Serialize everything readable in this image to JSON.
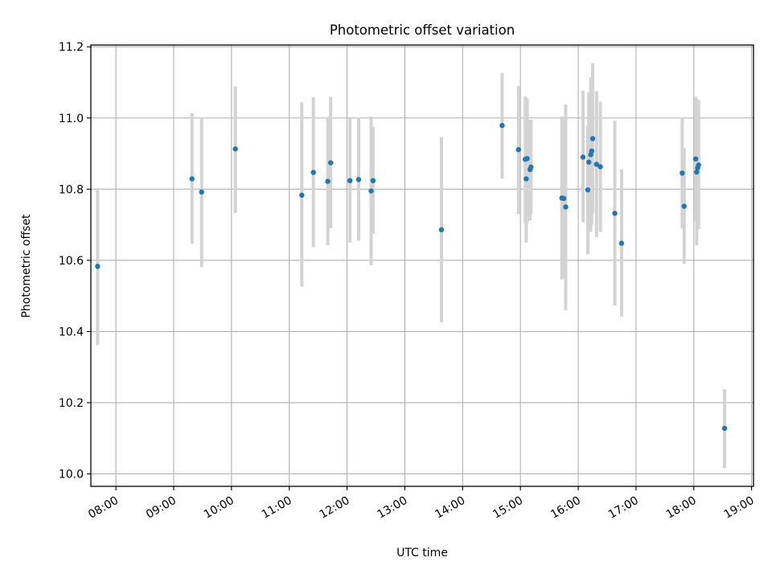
{
  "chart_data": {
    "type": "scatter",
    "title": "Photometric offset variation",
    "xlabel": "UTC time",
    "ylabel": "Photometric offset",
    "xlim": [
      "07:34",
      "19:02"
    ],
    "ylim": [
      9.965,
      11.205
    ],
    "x_ticks": [
      "08:00",
      "09:00",
      "10:00",
      "11:00",
      "12:00",
      "13:00",
      "14:00",
      "15:00",
      "16:00",
      "17:00",
      "18:00",
      "19:00"
    ],
    "y_ticks": [
      "10.0",
      "10.2",
      "10.4",
      "10.6",
      "10.8",
      "11.0",
      "11.2"
    ],
    "grid": true,
    "marker_color": "#1f77b4",
    "errorbar_color": "#d3d3d3",
    "points": [
      {
        "x": "07:41",
        "y": 10.583,
        "ylow": 10.362,
        "yhigh": 10.803
      },
      {
        "x": "09:19",
        "y": 10.829,
        "ylow": 10.647,
        "yhigh": 11.014
      },
      {
        "x": "09:29",
        "y": 10.792,
        "ylow": 10.581,
        "yhigh": 11.001
      },
      {
        "x": "10:04",
        "y": 10.913,
        "ylow": 10.733,
        "yhigh": 11.089
      },
      {
        "x": "11:13",
        "y": 10.783,
        "ylow": 10.526,
        "yhigh": 11.044
      },
      {
        "x": "11:25",
        "y": 10.847,
        "ylow": 10.637,
        "yhigh": 11.058
      },
      {
        "x": "11:40",
        "y": 10.822,
        "ylow": 10.643,
        "yhigh": 11.003
      },
      {
        "x": "11:43",
        "y": 10.874,
        "ylow": 10.69,
        "yhigh": 11.06
      },
      {
        "x": "12:03",
        "y": 10.824,
        "ylow": 10.65,
        "yhigh": 10.999
      },
      {
        "x": "12:12",
        "y": 10.827,
        "ylow": 10.655,
        "yhigh": 11.001
      },
      {
        "x": "12:25",
        "y": 10.795,
        "ylow": 10.586,
        "yhigh": 11.004
      },
      {
        "x": "12:27",
        "y": 10.824,
        "ylow": 10.675,
        "yhigh": 10.975
      },
      {
        "x": "13:38",
        "y": 10.686,
        "ylow": 10.426,
        "yhigh": 10.946
      },
      {
        "x": "14:41",
        "y": 10.979,
        "ylow": 10.83,
        "yhigh": 11.127
      },
      {
        "x": "14:58",
        "y": 10.911,
        "ylow": 10.73,
        "yhigh": 11.09
      },
      {
        "x": "15:05",
        "y": 10.884,
        "ylow": 10.705,
        "yhigh": 11.06
      },
      {
        "x": "15:06",
        "y": 10.829,
        "ylow": 10.65,
        "yhigh": 11.006
      },
      {
        "x": "15:07",
        "y": 10.886,
        "ylow": 10.707,
        "yhigh": 11.055
      },
      {
        "x": "15:10",
        "y": 10.855,
        "ylow": 10.712,
        "yhigh": 10.995
      },
      {
        "x": "15:11",
        "y": 10.862,
        "ylow": 10.73,
        "yhigh": 10.995
      },
      {
        "x": "15:43",
        "y": 10.775,
        "ylow": 10.546,
        "yhigh": 11.004
      },
      {
        "x": "15:45",
        "y": 10.774,
        "ylow": 10.55,
        "yhigh": 10.998
      },
      {
        "x": "15:47",
        "y": 10.75,
        "ylow": 10.46,
        "yhigh": 11.038
      },
      {
        "x": "16:05",
        "y": 10.89,
        "ylow": 10.707,
        "yhigh": 11.077
      },
      {
        "x": "16:10",
        "y": 10.798,
        "ylow": 10.617,
        "yhigh": 10.98
      },
      {
        "x": "16:11",
        "y": 10.876,
        "ylow": 10.68,
        "yhigh": 11.072
      },
      {
        "x": "16:13",
        "y": 10.897,
        "ylow": 10.68,
        "yhigh": 11.115
      },
      {
        "x": "16:14",
        "y": 10.907,
        "ylow": 10.7,
        "yhigh": 11.11
      },
      {
        "x": "16:15",
        "y": 10.942,
        "ylow": 10.73,
        "yhigh": 11.154
      },
      {
        "x": "16:19",
        "y": 10.87,
        "ylow": 10.665,
        "yhigh": 11.075
      },
      {
        "x": "16:23",
        "y": 10.863,
        "ylow": 10.68,
        "yhigh": 11.046
      },
      {
        "x": "16:38",
        "y": 10.732,
        "ylow": 10.473,
        "yhigh": 10.993
      },
      {
        "x": "16:45",
        "y": 10.648,
        "ylow": 10.442,
        "yhigh": 10.855
      },
      {
        "x": "17:48",
        "y": 10.845,
        "ylow": 10.69,
        "yhigh": 11.0
      },
      {
        "x": "17:50",
        "y": 10.752,
        "ylow": 10.59,
        "yhigh": 10.915
      },
      {
        "x": "18:02",
        "y": 10.885,
        "ylow": 10.71,
        "yhigh": 11.06
      },
      {
        "x": "18:03",
        "y": 10.848,
        "ylow": 10.642,
        "yhigh": 11.055
      },
      {
        "x": "18:04",
        "y": 10.86,
        "ylow": 10.69,
        "yhigh": 11.03
      },
      {
        "x": "18:05",
        "y": 10.868,
        "ylow": 10.688,
        "yhigh": 11.05
      },
      {
        "x": "18:32",
        "y": 10.128,
        "ylow": 10.017,
        "yhigh": 10.238
      }
    ]
  }
}
